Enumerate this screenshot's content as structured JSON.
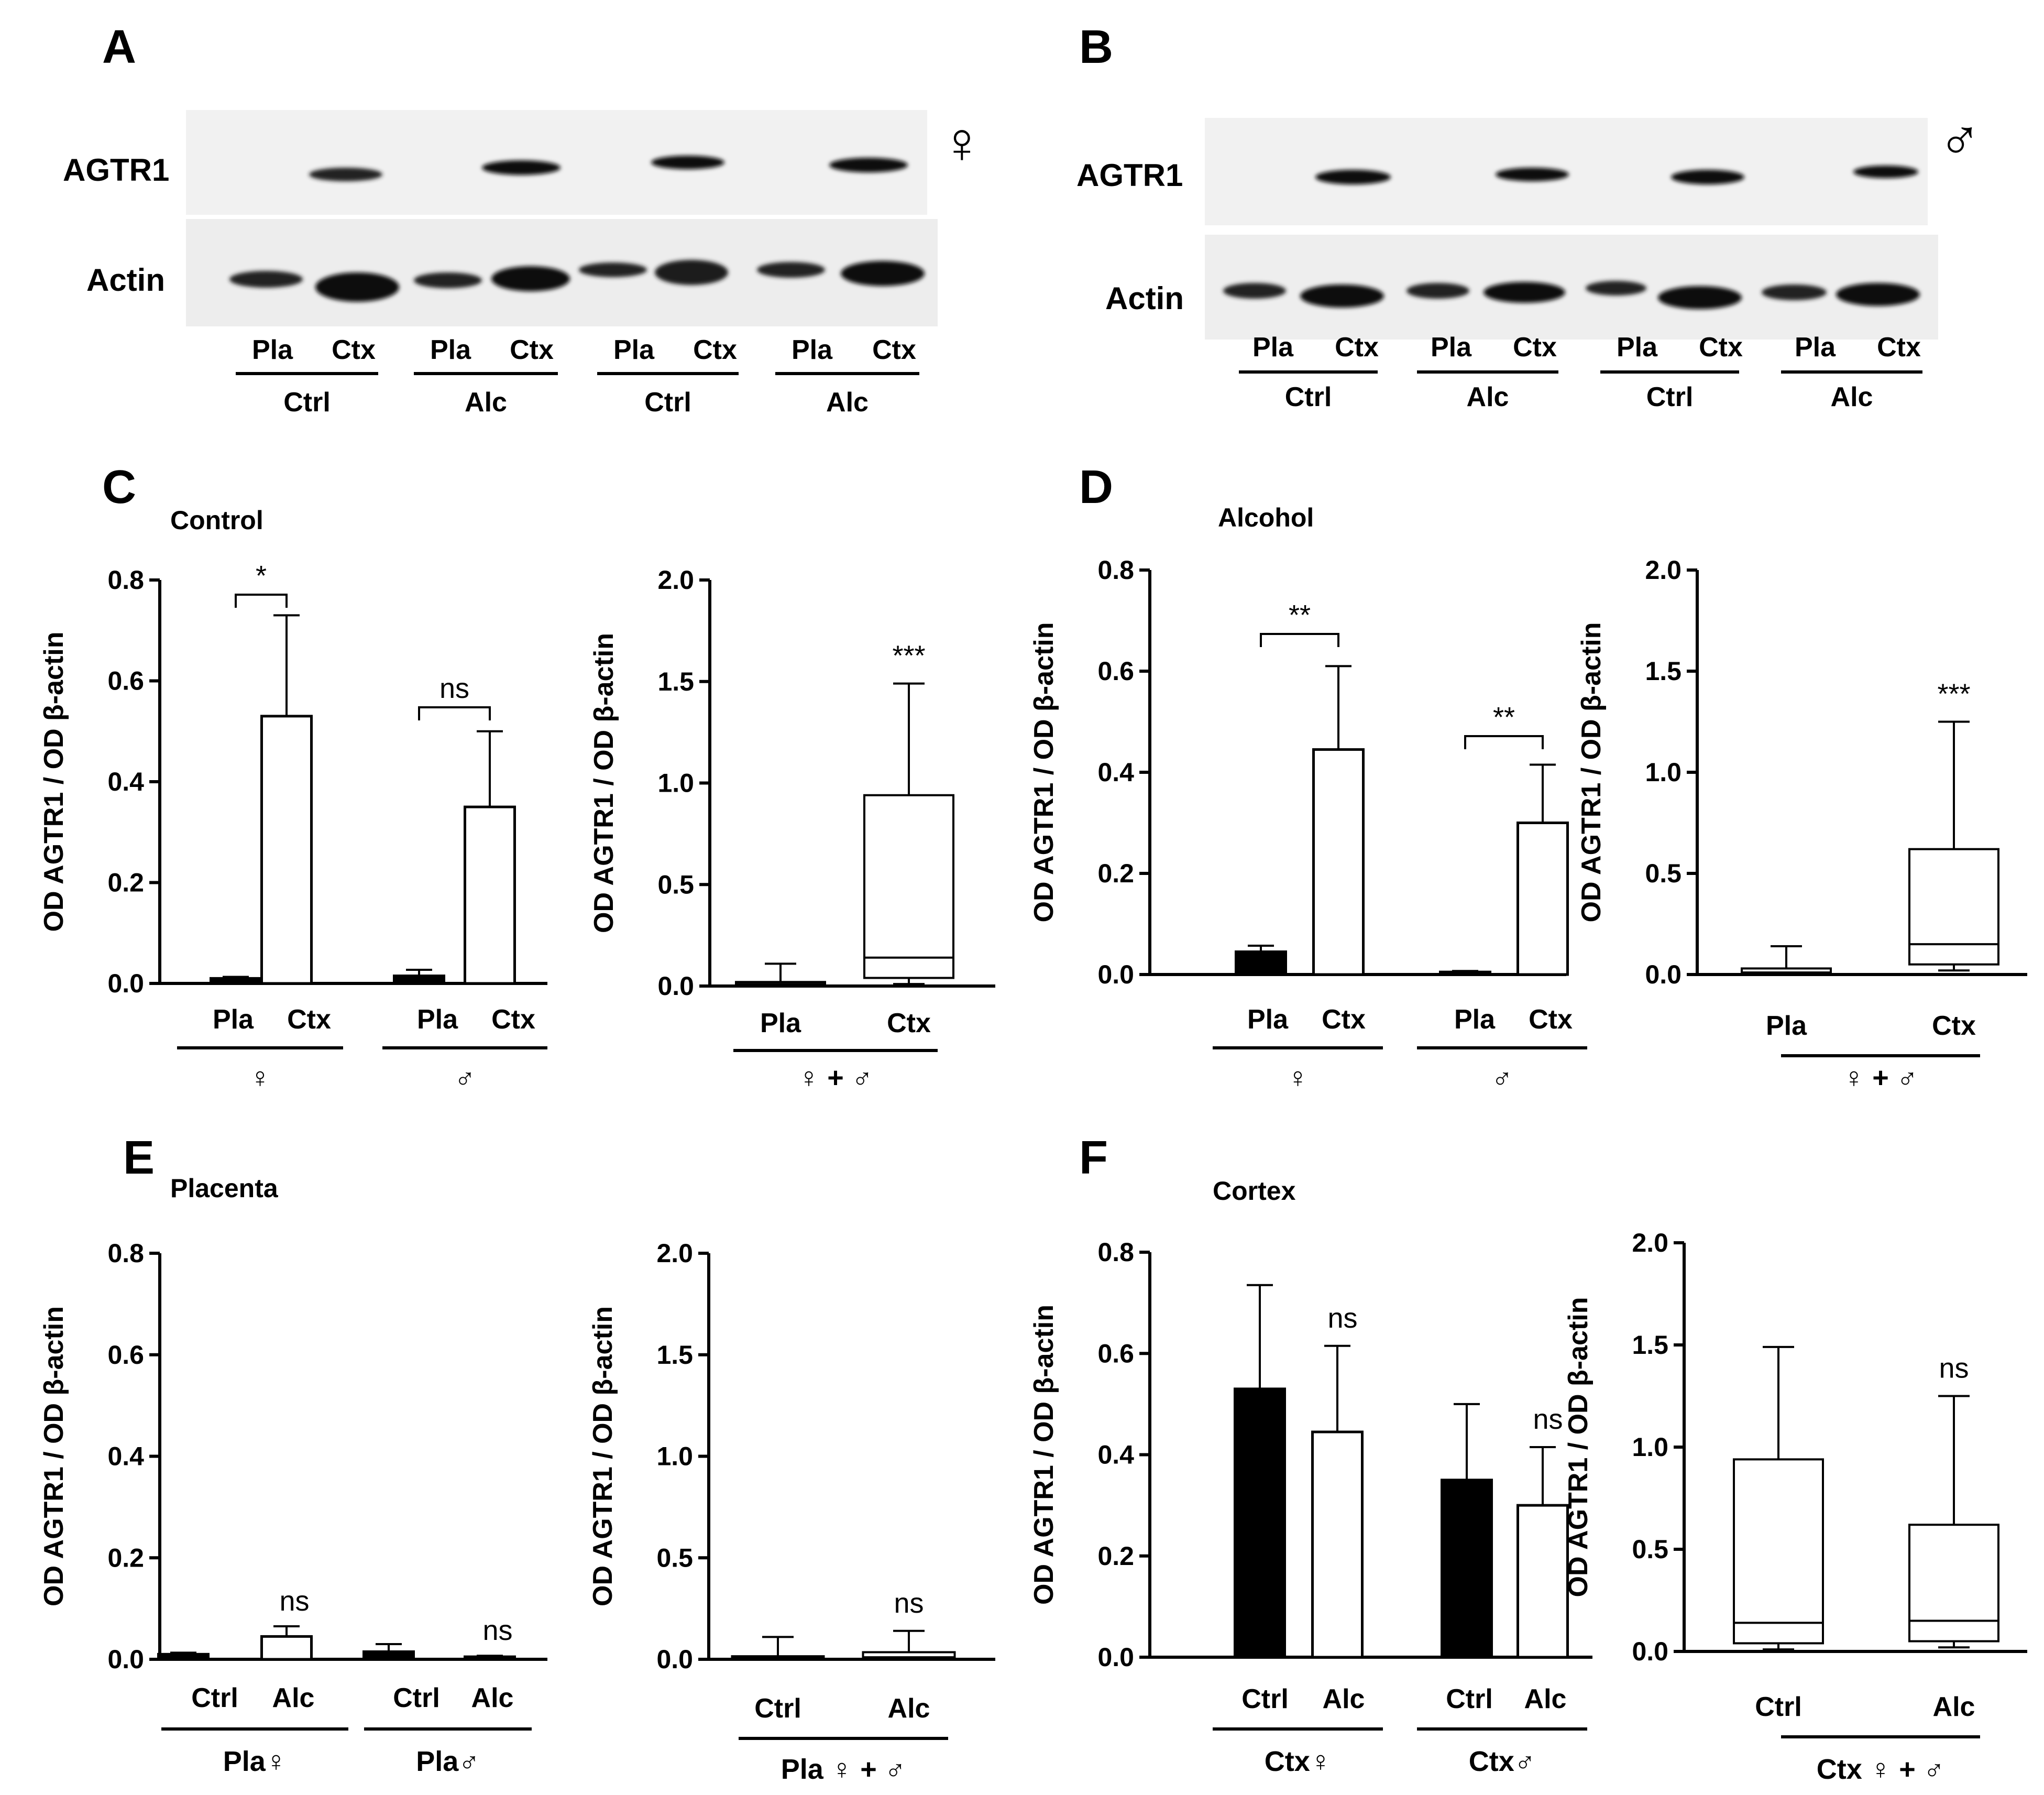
{
  "panels": {
    "A": {
      "letter": "A",
      "blot": {
        "top_label": "AGTR1",
        "bottom_label": "Actin",
        "sex_symbol": "♀",
        "lanes": [
          "Pla",
          "Ctx",
          "Pla",
          "Ctx",
          "Pla",
          "Ctx",
          "Pla",
          "Ctx"
        ],
        "groups": [
          "Ctrl",
          "Alc",
          "Ctrl",
          "Alc"
        ]
      }
    },
    "B": {
      "letter": "B",
      "blot": {
        "top_label": "AGTR1",
        "bottom_label": "Actin",
        "sex_symbol": "♂",
        "lanes": [
          "Pla",
          "Ctx",
          "Pla",
          "Ctx",
          "Pla",
          "Ctx",
          "Pla",
          "Ctx"
        ],
        "groups": [
          "Ctrl",
          "Alc",
          "Ctrl",
          "Alc"
        ]
      }
    },
    "C": {
      "letter": "C",
      "title": "Control"
    },
    "D": {
      "letter": "D",
      "title": "Alcohol"
    },
    "E": {
      "letter": "E",
      "title": "Placenta"
    },
    "F": {
      "letter": "F",
      "title": "Cortex"
    }
  },
  "chart_data": [
    {
      "id": "C-bar",
      "panel": "C",
      "type": "bar",
      "ylabel": "OD AGTR1 / OD β-actin",
      "ylim": [
        0,
        0.8
      ],
      "yticks": [
        "0.0",
        "0.2",
        "0.4",
        "0.6",
        "0.8"
      ],
      "groups": [
        {
          "label": "♀",
          "categories": [
            "Pla",
            "Ctx"
          ],
          "values": [
            0.01,
            0.53
          ],
          "errors": [
            0.003,
            0.2
          ],
          "fills": [
            "#000000",
            "#ffffff"
          ],
          "significance": "*"
        },
        {
          "label": "♂",
          "categories": [
            "Pla",
            "Ctx"
          ],
          "values": [
            0.015,
            0.35
          ],
          "errors": [
            0.012,
            0.15
          ],
          "fills": [
            "#000000",
            "#ffffff"
          ],
          "significance": "ns"
        }
      ]
    },
    {
      "id": "C-box",
      "panel": "C",
      "type": "box",
      "ylabel": "OD AGTR1 / OD β-actin",
      "ylim": [
        0,
        2.0
      ],
      "yticks": [
        "0.0",
        "0.5",
        "1.0",
        "1.5",
        "2.0"
      ],
      "group_label": "♀ + ♂",
      "boxes": [
        {
          "label": "Pla",
          "min": 0.0,
          "q1": 0.005,
          "median": 0.01,
          "q3": 0.02,
          "max": 0.11
        },
        {
          "label": "Ctx",
          "min": 0.01,
          "q1": 0.04,
          "median": 0.14,
          "q3": 0.94,
          "max": 1.49,
          "significance": "***"
        }
      ]
    },
    {
      "id": "D-bar",
      "panel": "D",
      "type": "bar",
      "ylabel": "OD AGTR1 / OD β-actin",
      "ylim": [
        0,
        0.8
      ],
      "yticks": [
        "0.0",
        "0.2",
        "0.4",
        "0.6",
        "0.8"
      ],
      "groups": [
        {
          "label": "♀",
          "categories": [
            "Pla",
            "Ctx"
          ],
          "values": [
            0.045,
            0.445
          ],
          "errors": [
            0.012,
            0.165
          ],
          "fills": [
            "#000000",
            "#ffffff"
          ],
          "significance": "**"
        },
        {
          "label": "♂",
          "categories": [
            "Pla",
            "Ctx"
          ],
          "values": [
            0.005,
            0.3
          ],
          "errors": [
            0.002,
            0.115
          ],
          "fills": [
            "#000000",
            "#ffffff"
          ],
          "significance": "**"
        }
      ]
    },
    {
      "id": "D-box",
      "panel": "D",
      "type": "box",
      "ylabel": "OD AGTR1 / OD β-actin",
      "ylim": [
        0,
        2.0
      ],
      "yticks": [
        "0.0",
        "0.5",
        "1.0",
        "1.5",
        "2.0"
      ],
      "group_label": "♀ + ♂",
      "boxes": [
        {
          "label": "Pla",
          "min": 0.0,
          "q1": 0.005,
          "median": 0.01,
          "q3": 0.03,
          "max": 0.14
        },
        {
          "label": "Ctx",
          "min": 0.02,
          "q1": 0.05,
          "median": 0.15,
          "q3": 0.62,
          "max": 1.25,
          "significance": "***"
        }
      ]
    },
    {
      "id": "E-bar",
      "panel": "E",
      "type": "bar",
      "ylabel": "OD AGTR1 / OD β-actin",
      "ylim": [
        0,
        0.8
      ],
      "yticks": [
        "0.0",
        "0.2",
        "0.4",
        "0.6",
        "0.8"
      ],
      "groups": [
        {
          "label": "Pla♀",
          "categories": [
            "Ctrl",
            "Alc"
          ],
          "values": [
            0.01,
            0.045
          ],
          "errors": [
            0.003,
            0.02
          ],
          "fills": [
            "#000000",
            "#ffffff"
          ],
          "significance": "ns"
        },
        {
          "label": "Pla♂",
          "categories": [
            "Ctrl",
            "Alc"
          ],
          "values": [
            0.015,
            0.005
          ],
          "errors": [
            0.015,
            0.002
          ],
          "fills": [
            "#000000",
            "#ffffff"
          ],
          "significance": "ns"
        }
      ]
    },
    {
      "id": "E-box",
      "panel": "E",
      "type": "box",
      "ylabel": "OD AGTR1 / OD β-actin",
      "ylim": [
        0,
        2.0
      ],
      "yticks": [
        "0.0",
        "0.5",
        "1.0",
        "1.5",
        "2.0"
      ],
      "group_label": "Pla ♀ + ♂",
      "boxes": [
        {
          "label": "Ctrl",
          "min": 0.0,
          "q1": 0.003,
          "median": 0.008,
          "q3": 0.015,
          "max": 0.11
        },
        {
          "label": "Alc",
          "min": 0.0,
          "q1": 0.005,
          "median": 0.01,
          "q3": 0.035,
          "max": 0.14,
          "significance": "ns"
        }
      ]
    },
    {
      "id": "F-bar",
      "panel": "F",
      "type": "bar",
      "ylabel": "OD AGTR1 / OD β-actin",
      "ylim": [
        0,
        0.8
      ],
      "yticks": [
        "0.0",
        "0.2",
        "0.4",
        "0.6",
        "0.8"
      ],
      "groups": [
        {
          "label": "Ctx♀",
          "categories": [
            "Ctrl",
            "Alc"
          ],
          "values": [
            0.53,
            0.445
          ],
          "errors": [
            0.205,
            0.17
          ],
          "fills": [
            "#000000",
            "#ffffff"
          ],
          "sig_on_second": "ns"
        },
        {
          "label": "Ctx♂",
          "categories": [
            "Ctrl",
            "Alc"
          ],
          "values": [
            0.35,
            0.3
          ],
          "errors": [
            0.15,
            0.115
          ],
          "fills": [
            "#000000",
            "#ffffff"
          ],
          "sig_on_second": "ns"
        }
      ]
    },
    {
      "id": "F-box",
      "panel": "F",
      "type": "box",
      "ylabel": "OD AGTR1 / OD β-actin",
      "ylim": [
        0,
        2.0
      ],
      "yticks": [
        "0.0",
        "0.5",
        "1.0",
        "1.5",
        "2.0"
      ],
      "group_label": "Ctx ♀ + ♂",
      "boxes": [
        {
          "label": "Ctrl",
          "min": 0.01,
          "q1": 0.04,
          "median": 0.14,
          "q3": 0.94,
          "max": 1.49
        },
        {
          "label": "Alc",
          "min": 0.02,
          "q1": 0.05,
          "median": 0.15,
          "q3": 0.62,
          "max": 1.25,
          "significance": "ns"
        }
      ]
    }
  ]
}
